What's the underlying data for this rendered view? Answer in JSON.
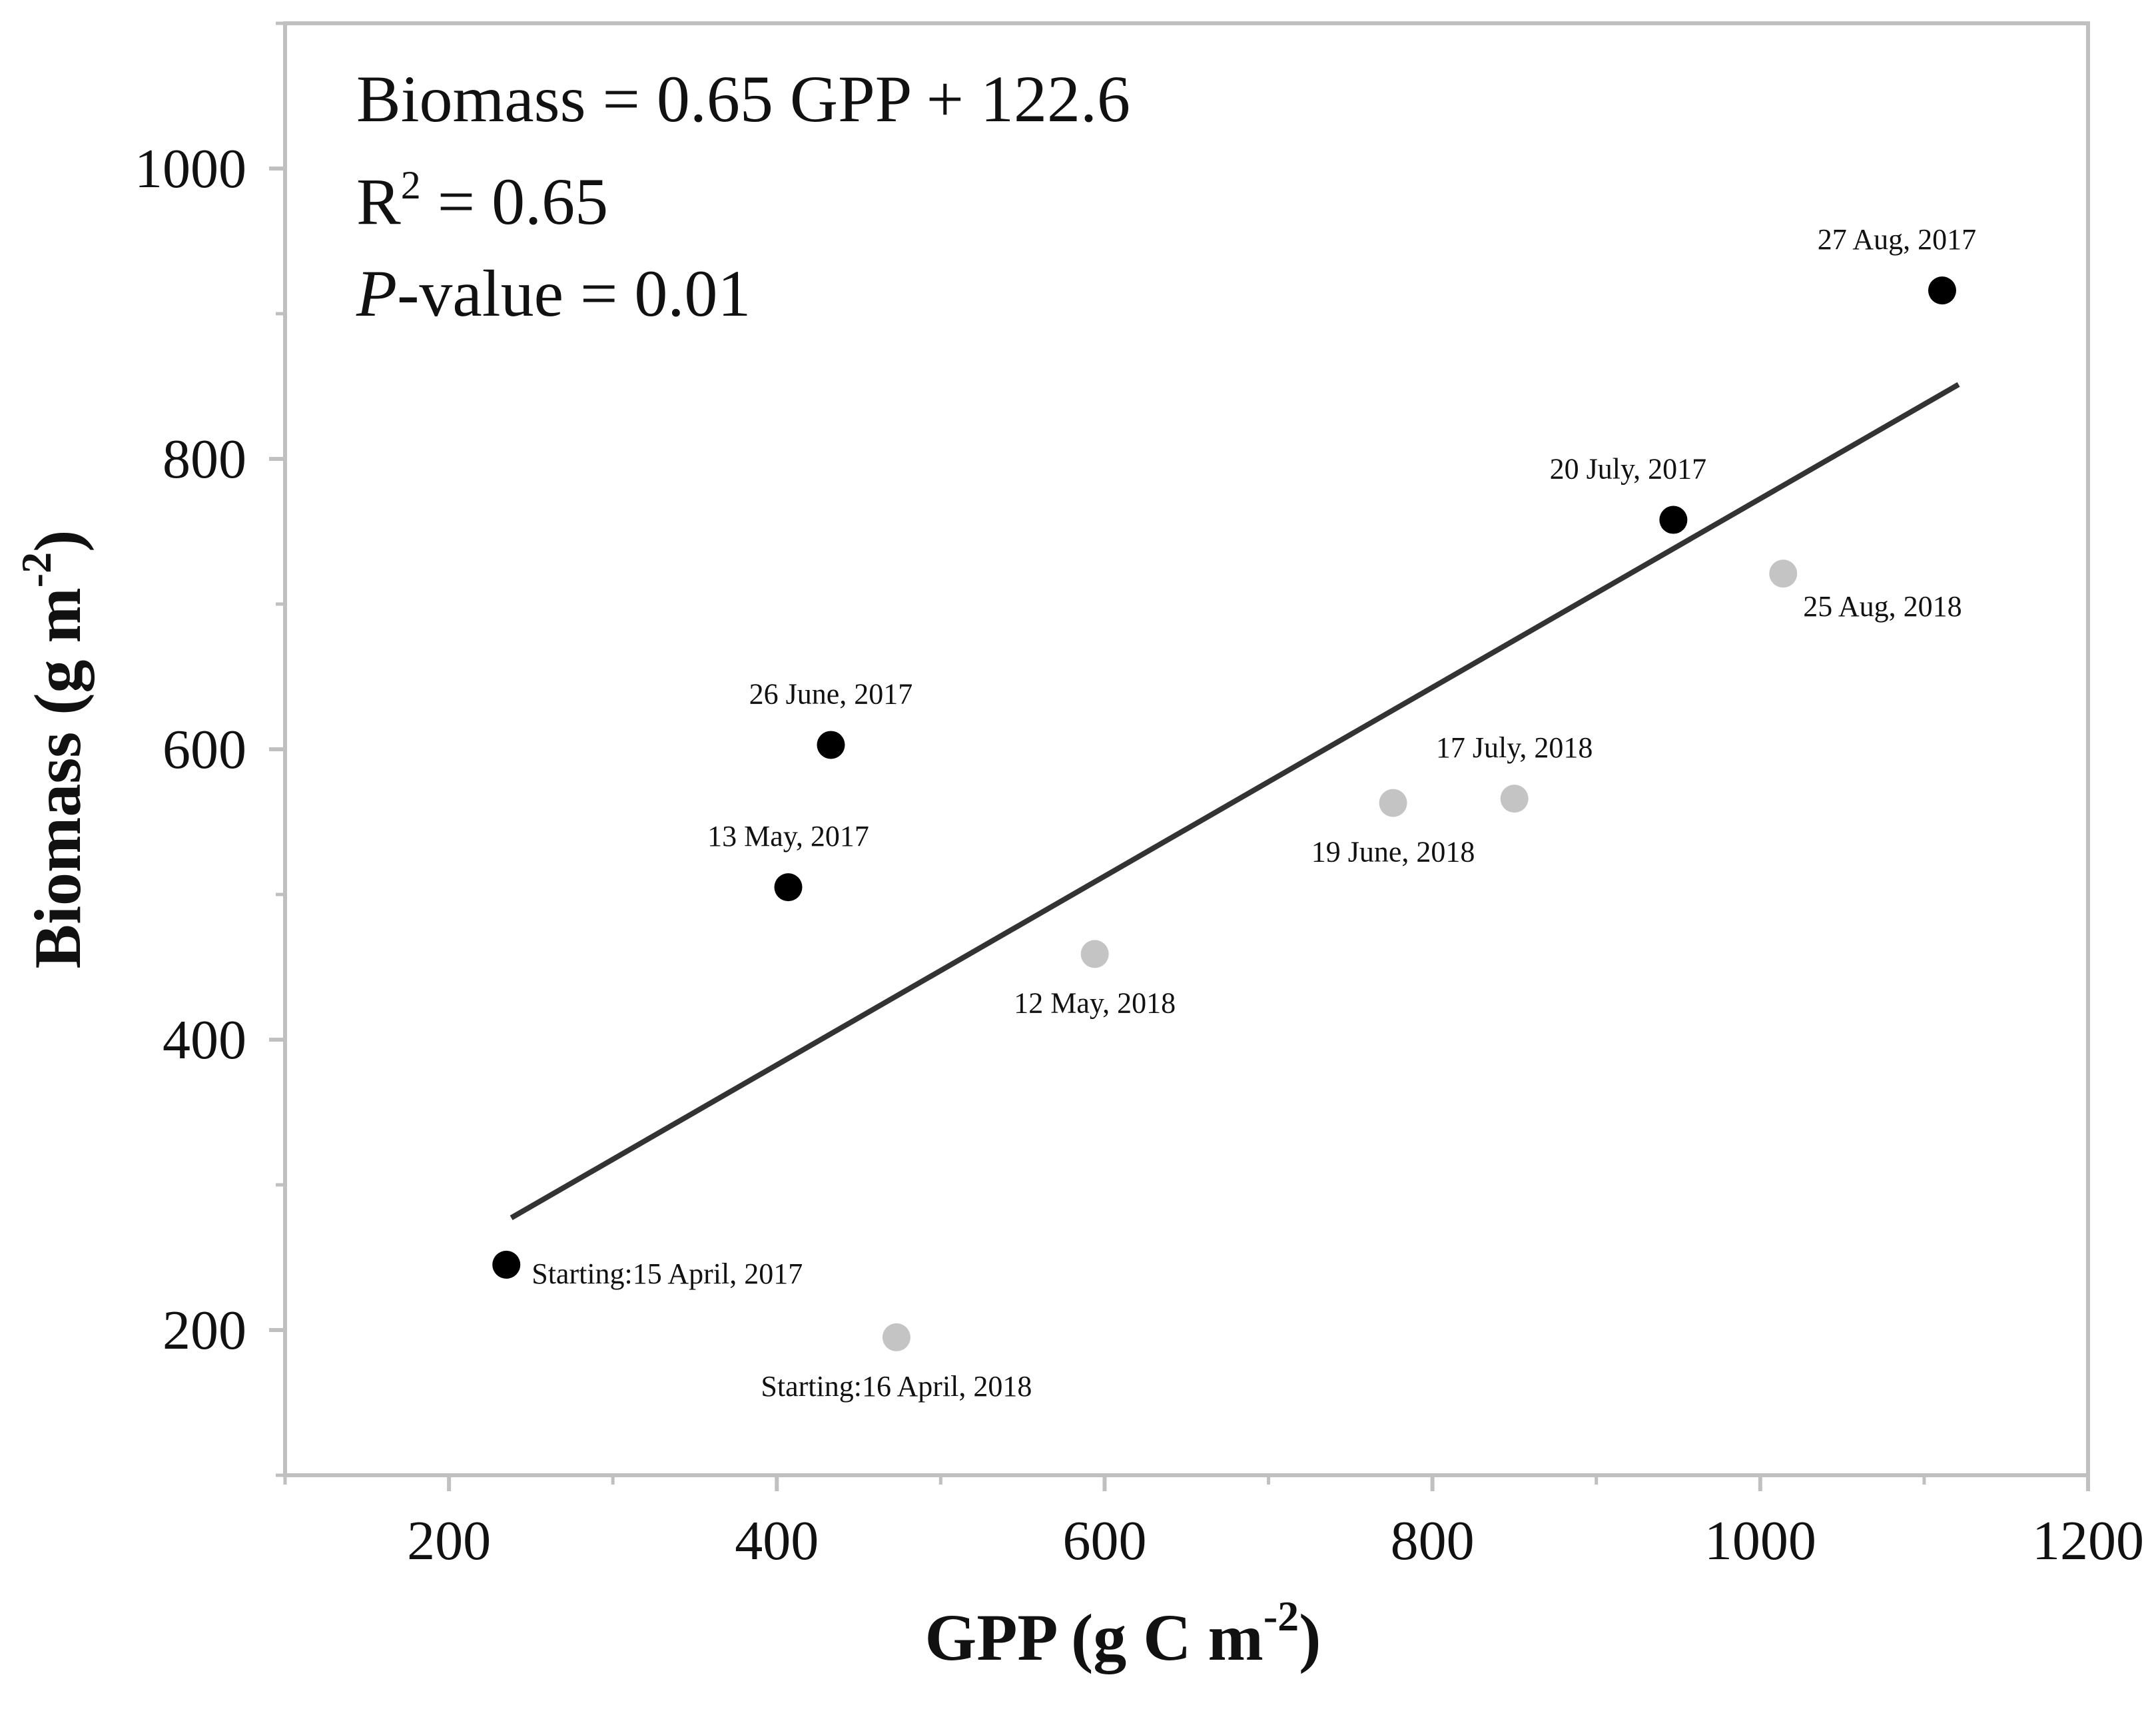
{
  "chart_data": {
    "type": "scatter",
    "xlabel": "GPP (g C m",
    "xlabel_sup": "-2",
    "xlabel_close": ")",
    "ylabel": "Biomass (g m",
    "ylabel_sup": "-2",
    "ylabel_close": ")",
    "xlim": [
      100,
      1200
    ],
    "ylim": [
      100,
      1100
    ],
    "x_ticks": [
      200,
      400,
      600,
      800,
      1000,
      1200
    ],
    "x_tick_labels": [
      "200",
      "400",
      "600",
      "800",
      "1000",
      "1200"
    ],
    "x_minor_ticks": [
      100,
      300,
      500,
      700,
      900,
      1100
    ],
    "y_ticks": [
      200,
      400,
      600,
      800,
      1000
    ],
    "y_tick_labels": [
      "200",
      "400",
      "600",
      "800",
      "1000"
    ],
    "y_minor_ticks": [
      100,
      300,
      500,
      700,
      900,
      1100
    ],
    "grid": false,
    "series": [
      {
        "name": "2017",
        "color": "#000000",
        "points": [
          {
            "x": 235,
            "y": 245,
            "label": "Starting:15 April, 2017",
            "anchor": "right"
          },
          {
            "x": 407,
            "y": 505,
            "label": "13 May, 2017",
            "anchor": "above"
          },
          {
            "x": 433,
            "y": 603,
            "label": "26 June, 2017",
            "anchor": "above"
          },
          {
            "x": 947,
            "y": 758,
            "label": "20 July, 2017",
            "anchor": "above-left"
          },
          {
            "x": 1111,
            "y": 916,
            "label": "27 Aug, 2017",
            "anchor": "above-left"
          }
        ]
      },
      {
        "name": "2018",
        "color": "#c4c4c4",
        "points": [
          {
            "x": 473,
            "y": 195,
            "label": "Starting:16 April, 2018",
            "anchor": "below"
          },
          {
            "x": 594,
            "y": 459,
            "label": "12 May, 2018",
            "anchor": "below"
          },
          {
            "x": 776,
            "y": 563,
            "label": "19 June, 2018",
            "anchor": "below"
          },
          {
            "x": 850,
            "y": 566,
            "label": "17 July, 2018",
            "anchor": "above"
          },
          {
            "x": 1014,
            "y": 721,
            "label": "25 Aug, 2018",
            "anchor": "below-right"
          }
        ]
      }
    ],
    "regression": {
      "slope": 0.65,
      "intercept": 122.6,
      "x_range": [
        238,
        1121
      ],
      "color": "#333333"
    },
    "annotations": {
      "equation": "Biomass = 0.65 GPP + 122.6",
      "r2_prefix": "R",
      "r2_sup": "2",
      "r2_value": " = 0.65",
      "p_italic": "P",
      "p_rest": "-value = 0.01"
    },
    "colors": {
      "frame": "#c0c0c0",
      "text": "#111111"
    }
  }
}
